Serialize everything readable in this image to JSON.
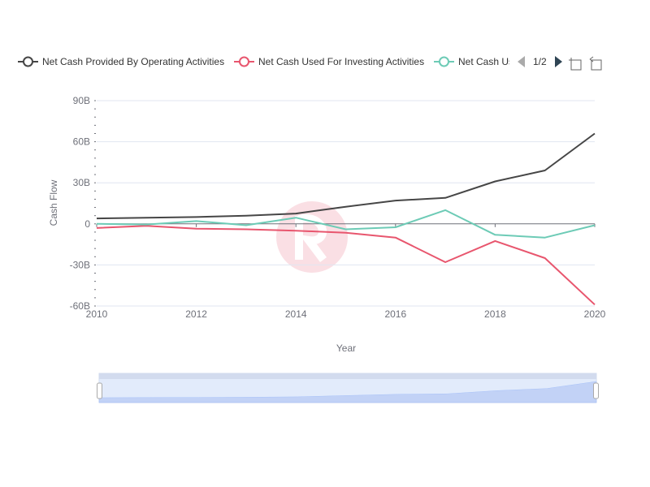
{
  "legend": {
    "items": [
      {
        "label": "Net Cash Provided By Operating Activities",
        "color": "#464646"
      },
      {
        "label": "Net Cash Used For Investing Activities",
        "color": "#e8566e"
      },
      {
        "label": "Net Cash Us",
        "color": "#6dcbb6"
      }
    ],
    "page_indicator": "1/2",
    "prev_icon": "triangle-left-icon",
    "next_icon": "triangle-right-icon"
  },
  "toolbox": {
    "zoom_icon": "data-zoom-icon",
    "reset_icon": "zoom-reset-icon"
  },
  "chart_data": {
    "type": "line",
    "x": [
      2010,
      2011,
      2012,
      2013,
      2014,
      2015,
      2016,
      2017,
      2018,
      2019,
      2020
    ],
    "series": [
      {
        "name": "Net Cash Provided By Operating Activities",
        "color": "#464646",
        "values": [
          4,
          4.5,
          5,
          6,
          7.5,
          12.5,
          17,
          19,
          31,
          39,
          66
        ]
      },
      {
        "name": "Net Cash Used For Investing Activities",
        "color": "#e8566e",
        "values": [
          -3,
          -1.5,
          -3.5,
          -4,
          -5,
          -6.5,
          -10,
          -28,
          -12.5,
          -25,
          -59
        ]
      },
      {
        "name": "Net Cash Us",
        "color": "#6dcbb6",
        "values": [
          0,
          -0.5,
          2,
          -1,
          4.5,
          -4,
          -2.5,
          10,
          -8,
          -10,
          -1
        ]
      }
    ],
    "xlabel": "Year",
    "ylabel": "Cash Flow",
    "xlim": [
      2010,
      2020
    ],
    "ylim": [
      -60,
      90
    ],
    "x_ticks": [
      "2010",
      "2012",
      "2014",
      "2016",
      "2018",
      "2020"
    ],
    "y_ticks": [
      "90B",
      "60B",
      "30B",
      "0",
      "-30B",
      "-60B"
    ],
    "y_tick_values": [
      90,
      60,
      30,
      0,
      -30,
      -60
    ],
    "grid": true,
    "legend_position": "top"
  }
}
